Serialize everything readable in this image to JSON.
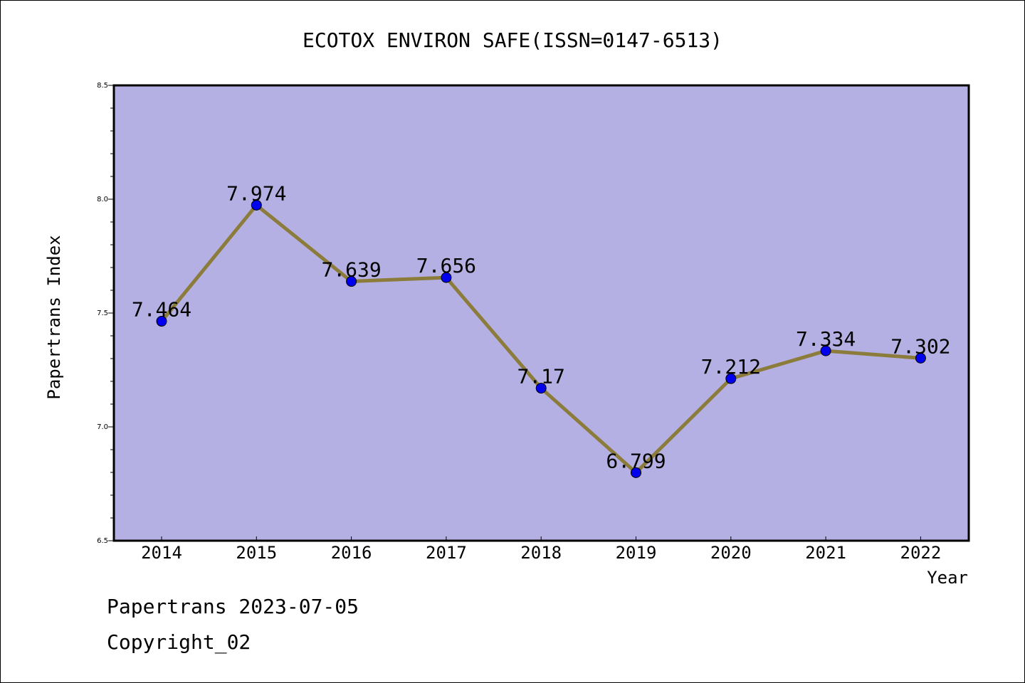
{
  "chart_data": {
    "type": "line",
    "title": "ECOTOX ENVIRON SAFE(ISSN=0147-6513)",
    "xlabel": "Year",
    "ylabel": "Papertrans Index",
    "categories": [
      "2014",
      "2015",
      "2016",
      "2017",
      "2018",
      "2019",
      "2020",
      "2021",
      "2022"
    ],
    "series": [
      {
        "values": [
          7.464,
          7.974,
          7.639,
          7.656,
          7.17,
          6.799,
          7.212,
          7.334,
          7.302
        ],
        "labels": [
          "7.464",
          "7.974",
          "7.639",
          "7.656",
          "7.17",
          "6.799",
          "7.212",
          "7.334",
          "7.302"
        ]
      }
    ],
    "ylim": [
      6.5,
      8.5
    ],
    "yticks": [
      "6.5",
      "7.0",
      "7.5",
      "8.0",
      "8.5"
    ],
    "grid": false,
    "colors": {
      "plot_background": "#b5b0e3",
      "line": "#8c7c3c",
      "marker": "#0000ee"
    }
  },
  "footer": {
    "line1": "Papertrans 2023-07-05",
    "line2": "Copyright_02"
  }
}
